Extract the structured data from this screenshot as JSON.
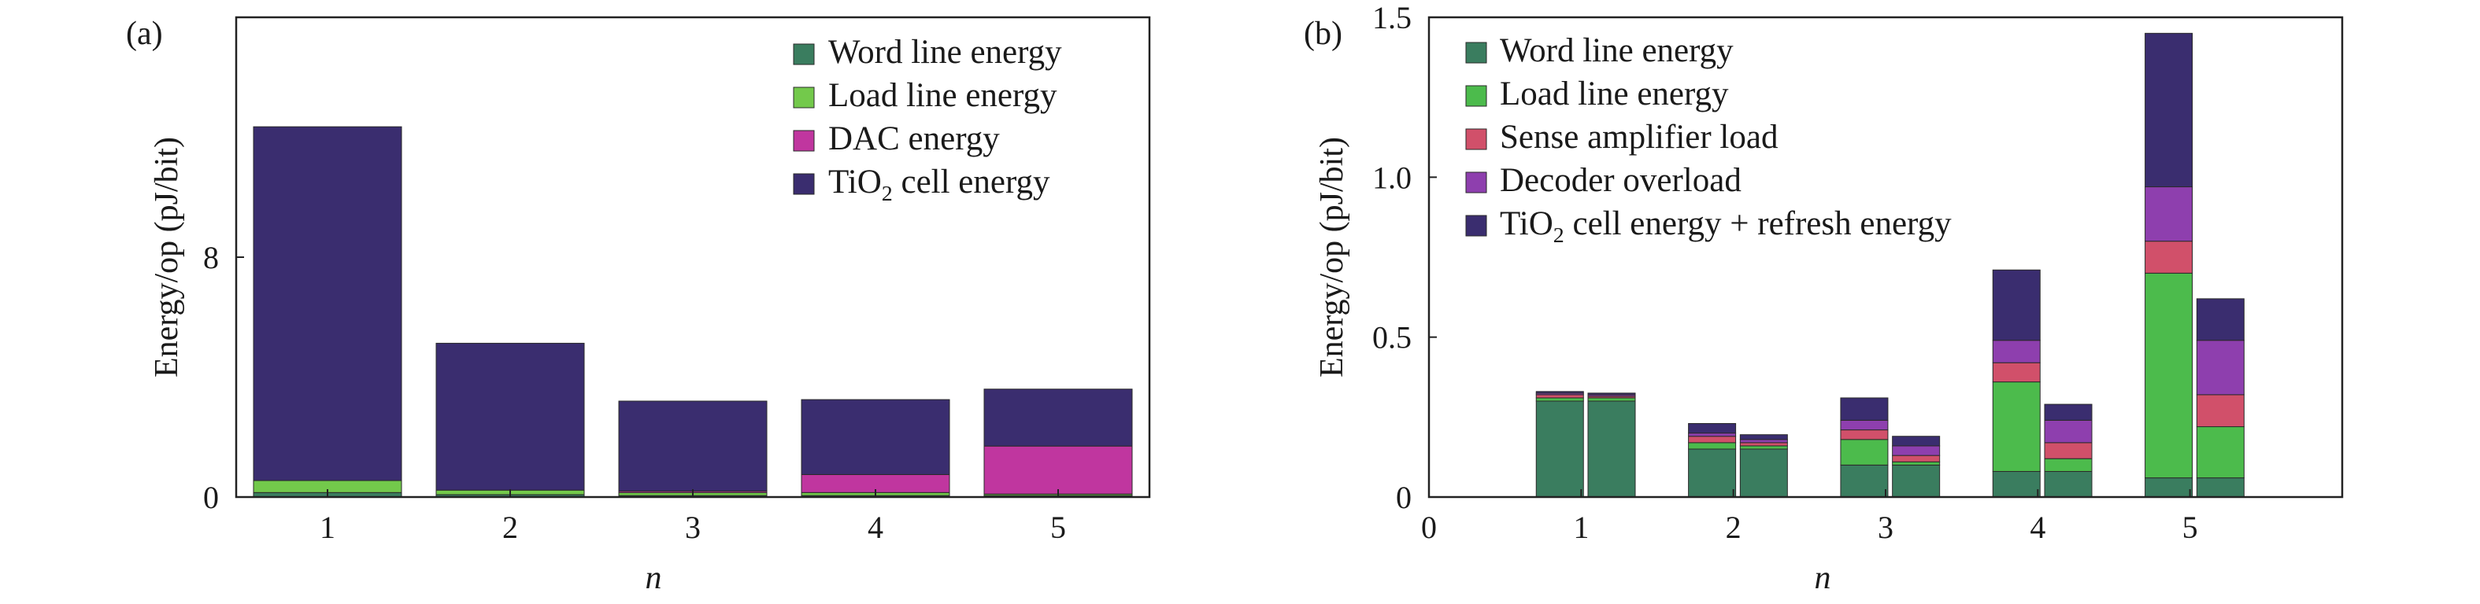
{
  "chart_data": [
    {
      "panel_label": "(a)",
      "type": "bar",
      "stacked": true,
      "xlabel": "n",
      "ylabel": "Energy/op (pJ/bit)",
      "ylim": [
        0,
        16
      ],
      "yticks": [
        "0",
        "8"
      ],
      "ytick_values": [
        0,
        8
      ],
      "categories": [
        "1",
        "2",
        "3",
        "4",
        "5"
      ],
      "legend_position": "top-right",
      "series": [
        {
          "name": "Word line energy",
          "color": "#3a7d5f",
          "values": [
            0.15,
            0.08,
            0.05,
            0.05,
            0.05
          ]
        },
        {
          "name": "Load line energy",
          "color": "#73c94b",
          "values": [
            0.4,
            0.15,
            0.1,
            0.1,
            0.05
          ]
        },
        {
          "name": "DAC  energy",
          "color": "#c0369f",
          "values": [
            0.0,
            0.0,
            0.05,
            0.6,
            1.6
          ]
        },
        {
          "name": "TiO₂ cell energy",
          "color": "#3a2d6f",
          "values": [
            11.8,
            4.9,
            3.0,
            2.5,
            1.9
          ]
        }
      ]
    },
    {
      "panel_label": "(b)",
      "type": "bar",
      "stacked": true,
      "xlabel": "n",
      "ylabel": "Energy/op (pJ/bit)",
      "xlim": [
        0,
        6
      ],
      "xticks": [
        "0",
        "1",
        "2",
        "3",
        "4",
        "5"
      ],
      "ylim": [
        0,
        1.5
      ],
      "yticks": [
        "0",
        "0.5",
        "1.0",
        "1.5"
      ],
      "ytick_values": [
        0,
        0.5,
        1.0,
        1.5
      ],
      "legend_position": "top-left",
      "x": [
        0.86,
        1.2,
        1.86,
        2.2,
        2.86,
        3.2,
        3.86,
        4.2,
        4.86,
        5.2
      ],
      "series": [
        {
          "name": "Word line energy",
          "color": "#3a7d5f",
          "values": [
            0.3,
            0.3,
            0.15,
            0.15,
            0.1,
            0.1,
            0.08,
            0.08,
            0.06,
            0.06
          ]
        },
        {
          "name": "Load line energy",
          "color": "#4cbb4c",
          "values": [
            0.01,
            0.01,
            0.02,
            0.01,
            0.08,
            0.01,
            0.28,
            0.04,
            0.64,
            0.16
          ]
        },
        {
          "name": "Sense amplifier load",
          "color": "#d1506a",
          "values": [
            0.01,
            0.005,
            0.02,
            0.01,
            0.03,
            0.02,
            0.06,
            0.05,
            0.1,
            0.1
          ]
        },
        {
          "name": "Decoder overload",
          "color": "#8e3fae",
          "values": [
            0.005,
            0.005,
            0.01,
            0.01,
            0.03,
            0.03,
            0.07,
            0.07,
            0.17,
            0.17
          ]
        },
        {
          "name": "TiO₂ cell energy + refresh energy",
          "color": "#3a2d6f",
          "values": [
            0.005,
            0.005,
            0.03,
            0.015,
            0.07,
            0.03,
            0.22,
            0.05,
            0.48,
            0.13
          ]
        }
      ]
    }
  ]
}
